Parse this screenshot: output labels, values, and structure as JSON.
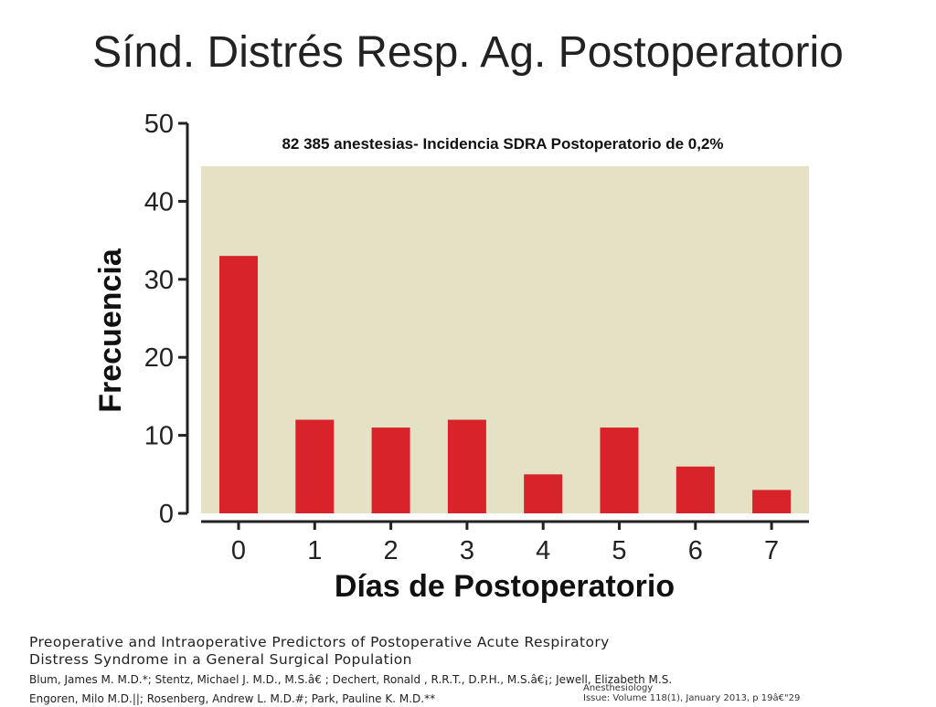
{
  "slide": {
    "title": "Sínd. Distrés Resp. Ag. Postoperatorio"
  },
  "chart_data": {
    "type": "bar",
    "title": "82 385 anestesias- Incidencia SDRA Postoperatorio de 0,2%",
    "xlabel": "Días de Postoperatorio",
    "ylabel": "Frecuencia",
    "categories": [
      "0",
      "1",
      "2",
      "3",
      "4",
      "5",
      "6",
      "7"
    ],
    "values": [
      33,
      12,
      11,
      12,
      5,
      11,
      6,
      3
    ],
    "yticks": [
      "0",
      "10",
      "20",
      "30",
      "40",
      "50"
    ],
    "ylim": [
      0,
      50
    ],
    "plot_top_value": 44.5,
    "grid": false,
    "colors": {
      "bar": "#d8232a",
      "plot_background": "#e4e1c4",
      "axis": "#222222"
    }
  },
  "citation": {
    "paper_title_line1": "Preoperative and Intraoperative Predictors of Postoperative Acute Respiratory",
    "paper_title_line2": "Distress Syndrome in a General Surgical Population",
    "authors_line1": "Blum, James M. M.D.*; Stentz, Michael J. M.D., M.S.â€ ; Dechert, Ronald , R.R.T., D.P.H., M.S.â€¡; Jewell, Elizabeth M.S.",
    "authors_line2": "Engoren, Milo M.D.||; Rosenberg, Andrew L. M.D.#; Park, Pauline K. M.D.**",
    "journal_line1": "Anesthesiology",
    "journal_line2": "Issue: Volume 118(1), January 2013, p 19â€\"29"
  }
}
